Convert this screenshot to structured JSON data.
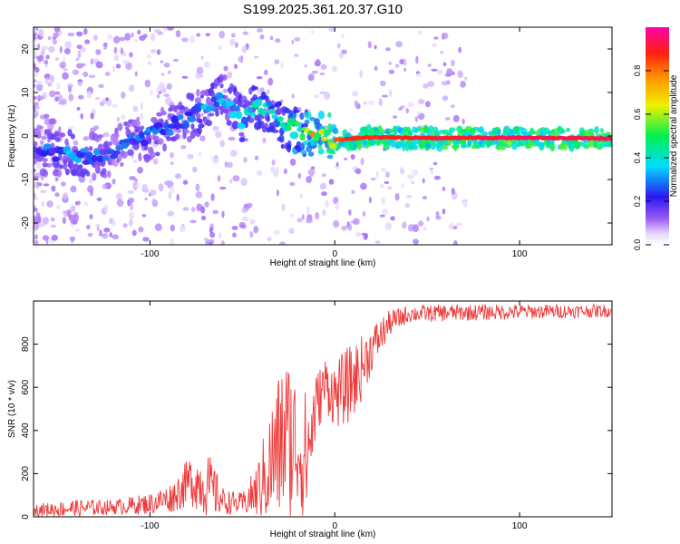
{
  "title": "S199.2025.361.20.37.G10",
  "chart_data": [
    {
      "type": "heatmap",
      "xlabel": "Height of straight line (km)",
      "ylabel": "Frequency (Hz)",
      "xlim": [
        -163,
        150
      ],
      "ylim": [
        -25,
        25
      ],
      "xticks": [
        -100,
        0,
        100
      ],
      "yticks": [
        -20,
        -10,
        0,
        10,
        20
      ],
      "ridge": [
        {
          "x": -160,
          "f": -3.5,
          "a": 0.25
        },
        {
          "x": -150,
          "f": -4.0,
          "a": 0.3
        },
        {
          "x": -140,
          "f": -4.0,
          "a": 0.35
        },
        {
          "x": -130,
          "f": -5.0,
          "a": 0.3
        },
        {
          "x": -120,
          "f": -3.5,
          "a": 0.25
        },
        {
          "x": -110,
          "f": -1.0,
          "a": 0.3
        },
        {
          "x": -100,
          "f": 0.0,
          "a": 0.3
        },
        {
          "x": -90,
          "f": 2.0,
          "a": 0.3
        },
        {
          "x": -80,
          "f": 4.0,
          "a": 0.3
        },
        {
          "x": -70,
          "f": 6.0,
          "a": 0.35
        },
        {
          "x": -60,
          "f": 9.0,
          "a": 0.35
        },
        {
          "x": -50,
          "f": 3.5,
          "a": 0.35
        },
        {
          "x": -42,
          "f": 7.0,
          "a": 0.45
        },
        {
          "x": -35,
          "f": 6.0,
          "a": 0.4
        },
        {
          "x": -28,
          "f": 2.0,
          "a": 0.45
        },
        {
          "x": -20,
          "f": 1.5,
          "a": 0.55
        },
        {
          "x": -15,
          "f": 0.5,
          "a": 0.65
        },
        {
          "x": -10,
          "f": 0.2,
          "a": 0.75
        },
        {
          "x": -5,
          "f": 0.3,
          "a": 0.75
        },
        {
          "x": 0,
          "f": -1.0,
          "a": 0.85
        },
        {
          "x": 10,
          "f": -0.5,
          "a": 0.9
        },
        {
          "x": 20,
          "f": -0.3,
          "a": 0.9
        },
        {
          "x": 50,
          "f": -0.5,
          "a": 0.92
        },
        {
          "x": 100,
          "f": -0.4,
          "a": 0.95
        },
        {
          "x": 150,
          "f": -0.6,
          "a": 0.95
        }
      ],
      "colorbar": {
        "label": "Normalized spectral amplitude",
        "range": [
          0.0,
          1.0
        ],
        "ticks": [
          0.0,
          0.2,
          0.4,
          0.6,
          0.8
        ],
        "tick_labels": [
          "0.0",
          "0.2",
          "0.4",
          "0.6",
          "0.8"
        ]
      }
    },
    {
      "type": "line",
      "xlabel": "Height of straight line (km)",
      "ylabel": "SNR (10 * v/v)",
      "xlim": [
        -163,
        150
      ],
      "ylim": [
        0,
        1000
      ],
      "xticks": [
        -100,
        0,
        100
      ],
      "yticks": [
        0,
        200,
        400,
        600,
        800
      ],
      "color": "#ee3a3a",
      "envelope": [
        {
          "x": -163,
          "mean": 30,
          "amp": 30
        },
        {
          "x": -140,
          "mean": 40,
          "amp": 40
        },
        {
          "x": -120,
          "mean": 45,
          "amp": 35
        },
        {
          "x": -100,
          "mean": 60,
          "amp": 50
        },
        {
          "x": -88,
          "mean": 90,
          "amp": 70
        },
        {
          "x": -78,
          "mean": 170,
          "amp": 120
        },
        {
          "x": -68,
          "mean": 140,
          "amp": 150
        },
        {
          "x": -60,
          "mean": 70,
          "amp": 60
        },
        {
          "x": -50,
          "mean": 60,
          "amp": 50
        },
        {
          "x": -42,
          "mean": 120,
          "amp": 130
        },
        {
          "x": -34,
          "mean": 250,
          "amp": 300
        },
        {
          "x": -27,
          "mean": 380,
          "amp": 400
        },
        {
          "x": -20,
          "mean": 330,
          "amp": 330
        },
        {
          "x": -15,
          "mean": 280,
          "amp": 300
        },
        {
          "x": -10,
          "mean": 520,
          "amp": 150
        },
        {
          "x": -5,
          "mean": 620,
          "amp": 130
        },
        {
          "x": 0,
          "mean": 560,
          "amp": 150
        },
        {
          "x": 6,
          "mean": 600,
          "amp": 180
        },
        {
          "x": 12,
          "mean": 650,
          "amp": 170
        },
        {
          "x": 20,
          "mean": 780,
          "amp": 110
        },
        {
          "x": 30,
          "mean": 900,
          "amp": 60
        },
        {
          "x": 40,
          "mean": 940,
          "amp": 40
        },
        {
          "x": 60,
          "mean": 945,
          "amp": 40
        },
        {
          "x": 100,
          "mean": 950,
          "amp": 35
        },
        {
          "x": 150,
          "mean": 955,
          "amp": 30
        }
      ]
    }
  ]
}
